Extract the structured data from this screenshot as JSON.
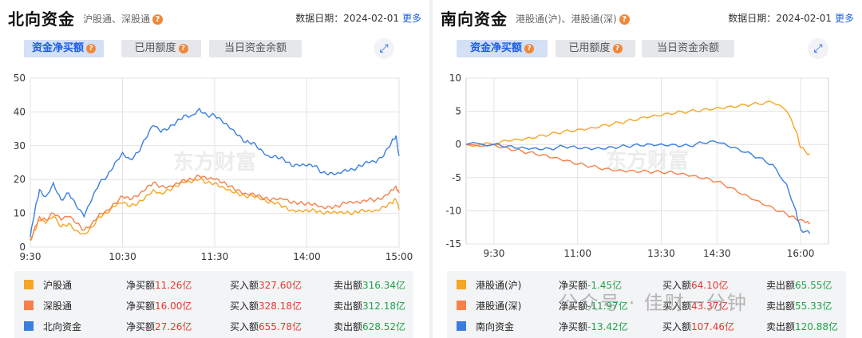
{
  "north": {
    "title": "北向资金",
    "subtitle": "沪股通、深股通",
    "date_label": "数据日期：2024-02-01",
    "more": "更多",
    "tabs": [
      {
        "label": "资金净买额",
        "active": true,
        "help": true
      },
      {
        "label": "已用额度",
        "active": false,
        "help": true
      },
      {
        "label": "当日资金余额",
        "active": false,
        "help": false
      }
    ],
    "legend": [
      {
        "name": "沪股通",
        "color": "#f5a623",
        "net_label": "净买额",
        "net": "11.26亿",
        "net_sign": "pos",
        "buy_label": "买入额",
        "buy": "327.60亿",
        "sell_label": "卖出额",
        "sell": "316.34亿"
      },
      {
        "name": "深股通",
        "color": "#f5804a",
        "net_label": "净买额",
        "net": "16.00亿",
        "net_sign": "pos",
        "buy_label": "买入额",
        "buy": "328.18亿",
        "sell_label": "卖出额",
        "sell": "312.18亿"
      },
      {
        "name": "北向资金",
        "color": "#3a7fe0",
        "net_label": "净买额",
        "net": "27.26亿",
        "net_sign": "pos",
        "buy_label": "买入额",
        "buy": "655.78亿",
        "sell_label": "卖出额",
        "sell": "628.52亿"
      }
    ]
  },
  "south": {
    "title": "南向资金",
    "subtitle": "港股通(沪)、港股通(深)",
    "date_label": "数据日期：2024-02-01",
    "more": "更多",
    "tabs": [
      {
        "label": "资金净买额",
        "active": true,
        "help": true
      },
      {
        "label": "已用额度",
        "active": false,
        "help": true
      },
      {
        "label": "当日资金余额",
        "active": false,
        "help": false
      }
    ],
    "legend": [
      {
        "name": "港股通(沪)",
        "color": "#f5a623",
        "net_label": "净买额",
        "net": "-1.45亿",
        "net_sign": "neg",
        "buy_label": "买入额",
        "buy": "64.10亿",
        "sell_label": "卖出额",
        "sell": "65.55亿"
      },
      {
        "name": "港股通(深)",
        "color": "#f5804a",
        "net_label": "净买额",
        "net": "-11.97亿",
        "net_sign": "neg",
        "buy_label": "买入额",
        "buy": "43.37亿",
        "sell_label": "卖出额",
        "sell": "55.33亿"
      },
      {
        "name": "南向资金",
        "color": "#3a7fe0",
        "net_label": "净买额",
        "net": "-13.42亿",
        "net_sign": "neg",
        "buy_label": "买入额",
        "buy": "107.46亿",
        "sell_label": "卖出额",
        "sell": "120.88亿"
      }
    ]
  },
  "watermark": "东方财富",
  "wechat_watermark": "公众号 · 佳财一分钟",
  "chart_data": [
    {
      "type": "line",
      "ylim": [
        0,
        50
      ],
      "yticks": [
        0,
        10,
        20,
        30,
        40,
        50
      ],
      "xticks": [
        "9:30",
        "10:30",
        "11:30",
        "14:00",
        "15:00"
      ],
      "x_units": "trading_minutes",
      "x_range": [
        0,
        240
      ],
      "xtick_positions": [
        0,
        60,
        120,
        180,
        240
      ],
      "grid": true,
      "series": [
        {
          "name": "沪股通",
          "color": "#f5a623",
          "points": [
            [
              0,
              2
            ],
            [
              3,
              5
            ],
            [
              6,
              8
            ],
            [
              10,
              7
            ],
            [
              15,
              9
            ],
            [
              20,
              6
            ],
            [
              25,
              7
            ],
            [
              30,
              5
            ],
            [
              35,
              4
            ],
            [
              40,
              6
            ],
            [
              45,
              9
            ],
            [
              50,
              10
            ],
            [
              55,
              12
            ],
            [
              60,
              13
            ],
            [
              65,
              12
            ],
            [
              70,
              13
            ],
            [
              75,
              15
            ],
            [
              80,
              17
            ],
            [
              85,
              16
            ],
            [
              90,
              17
            ],
            [
              95,
              18
            ],
            [
              100,
              19
            ],
            [
              105,
              19
            ],
            [
              110,
              20
            ],
            [
              115,
              19
            ],
            [
              120,
              19
            ],
            [
              125,
              18
            ],
            [
              130,
              17
            ],
            [
              135,
              16
            ],
            [
              140,
              15
            ],
            [
              145,
              15
            ],
            [
              150,
              14
            ],
            [
              155,
              13
            ],
            [
              160,
              13
            ],
            [
              165,
              12
            ],
            [
              170,
              11
            ],
            [
              175,
              11
            ],
            [
              180,
              11
            ],
            [
              185,
              11
            ],
            [
              190,
              10
            ],
            [
              195,
              10
            ],
            [
              200,
              10
            ],
            [
              205,
              10
            ],
            [
              210,
              10
            ],
            [
              215,
              11
            ],
            [
              220,
              11
            ],
            [
              225,
              11
            ],
            [
              230,
              12
            ],
            [
              235,
              13
            ],
            [
              238,
              14
            ],
            [
              240,
              11
            ]
          ]
        },
        {
          "name": "深股通",
          "color": "#f5804a",
          "points": [
            [
              0,
              2
            ],
            [
              3,
              6
            ],
            [
              6,
              9
            ],
            [
              10,
              8
            ],
            [
              15,
              10
            ],
            [
              20,
              8
            ],
            [
              25,
              9
            ],
            [
              30,
              7
            ],
            [
              35,
              5
            ],
            [
              40,
              7
            ],
            [
              45,
              10
            ],
            [
              50,
              11
            ],
            [
              55,
              13
            ],
            [
              60,
              15
            ],
            [
              65,
              14
            ],
            [
              70,
              15
            ],
            [
              75,
              17
            ],
            [
              80,
              19
            ],
            [
              85,
              18
            ],
            [
              90,
              18
            ],
            [
              95,
              19
            ],
            [
              100,
              20
            ],
            [
              105,
              20
            ],
            [
              110,
              21
            ],
            [
              115,
              20
            ],
            [
              120,
              20
            ],
            [
              125,
              19
            ],
            [
              130,
              18
            ],
            [
              135,
              17
            ],
            [
              140,
              16
            ],
            [
              145,
              16
            ],
            [
              150,
              15
            ],
            [
              155,
              14
            ],
            [
              160,
              14
            ],
            [
              165,
              14
            ],
            [
              170,
              13
            ],
            [
              175,
              13
            ],
            [
              180,
              13
            ],
            [
              185,
              13
            ],
            [
              190,
              12
            ],
            [
              195,
              12
            ],
            [
              200,
              12
            ],
            [
              205,
              13
            ],
            [
              210,
              13
            ],
            [
              215,
              13
            ],
            [
              220,
              14
            ],
            [
              225,
              14
            ],
            [
              230,
              15
            ],
            [
              235,
              17
            ],
            [
              238,
              18
            ],
            [
              240,
              16
            ]
          ]
        },
        {
          "name": "北向资金",
          "color": "#3a7fe0",
          "points": [
            [
              0,
              3
            ],
            [
              3,
              11
            ],
            [
              6,
              17
            ],
            [
              10,
              15
            ],
            [
              15,
              19
            ],
            [
              20,
              14
            ],
            [
              25,
              16
            ],
            [
              30,
              12
            ],
            [
              35,
              9
            ],
            [
              40,
              14
            ],
            [
              45,
              19
            ],
            [
              50,
              21
            ],
            [
              55,
              25
            ],
            [
              60,
              28
            ],
            [
              65,
              26
            ],
            [
              70,
              28
            ],
            [
              75,
              32
            ],
            [
              80,
              36
            ],
            [
              85,
              34
            ],
            [
              90,
              35
            ],
            [
              95,
              37
            ],
            [
              100,
              39
            ],
            [
              105,
              39
            ],
            [
              110,
              41
            ],
            [
              115,
              39
            ],
            [
              120,
              39
            ],
            [
              125,
              37
            ],
            [
              130,
              35
            ],
            [
              135,
              33
            ],
            [
              140,
              31
            ],
            [
              145,
              31
            ],
            [
              150,
              29
            ],
            [
              155,
              27
            ],
            [
              160,
              27
            ],
            [
              165,
              26
            ],
            [
              170,
              24
            ],
            [
              175,
              24
            ],
            [
              180,
              24
            ],
            [
              185,
              24
            ],
            [
              190,
              22
            ],
            [
              195,
              22
            ],
            [
              200,
              22
            ],
            [
              205,
              23
            ],
            [
              210,
              23
            ],
            [
              215,
              24
            ],
            [
              220,
              25
            ],
            [
              225,
              25
            ],
            [
              230,
              27
            ],
            [
              235,
              31
            ],
            [
              238,
              33
            ],
            [
              240,
              27
            ]
          ]
        }
      ]
    },
    {
      "type": "line",
      "ylim": [
        -15,
        10
      ],
      "yticks": [
        -15,
        -10,
        -5,
        0,
        5,
        10
      ],
      "xticks": [
        "9:30",
        "11:00",
        "13:30",
        "14:30",
        "16:00"
      ],
      "x_units": "trading_minutes",
      "x_range": [
        -15,
        375
      ],
      "xtick_positions": [
        15,
        105,
        195,
        255,
        345
      ],
      "grid": true,
      "series": [
        {
          "name": "港股通(沪)",
          "color": "#f5a623",
          "points": [
            [
              -15,
              0
            ],
            [
              15,
              0
            ],
            [
              30,
              0.5
            ],
            [
              45,
              0.6
            ],
            [
              60,
              1
            ],
            [
              75,
              1.5
            ],
            [
              90,
              2
            ],
            [
              105,
              2.3
            ],
            [
              120,
              2.6
            ],
            [
              135,
              3
            ],
            [
              150,
              3.3
            ],
            [
              165,
              3.6
            ],
            [
              180,
              4
            ],
            [
              195,
              4.3
            ],
            [
              210,
              4.7
            ],
            [
              225,
              5
            ],
            [
              240,
              5.3
            ],
            [
              255,
              5.6
            ],
            [
              270,
              5.8
            ],
            [
              285,
              6
            ],
            [
              300,
              6.1
            ],
            [
              315,
              6.3
            ],
            [
              330,
              5
            ],
            [
              340,
              2
            ],
            [
              345,
              -0.5
            ],
            [
              355,
              -1.45
            ]
          ]
        },
        {
          "name": "港股通(深)",
          "color": "#f5804a",
          "points": [
            [
              -15,
              0
            ],
            [
              15,
              0
            ],
            [
              30,
              -0.5
            ],
            [
              45,
              -1
            ],
            [
              60,
              -1.5
            ],
            [
              75,
              -2
            ],
            [
              90,
              -2.5
            ],
            [
              105,
              -3
            ],
            [
              120,
              -3.3
            ],
            [
              135,
              -3.6
            ],
            [
              150,
              -3.8
            ],
            [
              165,
              -3.9
            ],
            [
              180,
              -4
            ],
            [
              195,
              -4.2
            ],
            [
              210,
              -4.4
            ],
            [
              225,
              -4.8
            ],
            [
              240,
              -5.2
            ],
            [
              255,
              -5.6
            ],
            [
              270,
              -6.5
            ],
            [
              285,
              -7.5
            ],
            [
              300,
              -8.5
            ],
            [
              315,
              -9.5
            ],
            [
              330,
              -10.5
            ],
            [
              340,
              -11.3
            ],
            [
              350,
              -11.8
            ],
            [
              355,
              -11.97
            ]
          ]
        },
        {
          "name": "南向资金",
          "color": "#3a7fe0",
          "points": [
            [
              -15,
              0
            ],
            [
              15,
              0
            ],
            [
              30,
              -0.2
            ],
            [
              45,
              -0.4
            ],
            [
              60,
              -0.5
            ],
            [
              75,
              -0.6
            ],
            [
              90,
              -0.3
            ],
            [
              105,
              -0.6
            ],
            [
              120,
              -0.8
            ],
            [
              135,
              -0.7
            ],
            [
              150,
              -0.4
            ],
            [
              165,
              -0.1
            ],
            [
              180,
              0.1
            ],
            [
              195,
              0.1
            ],
            [
              210,
              0
            ],
            [
              225,
              -0.2
            ],
            [
              240,
              0.2
            ],
            [
              255,
              0.3
            ],
            [
              270,
              -0.5
            ],
            [
              285,
              -1.2
            ],
            [
              300,
              -2
            ],
            [
              315,
              -3
            ],
            [
              330,
              -6
            ],
            [
              340,
              -10
            ],
            [
              345,
              -12.8
            ],
            [
              355,
              -13.42
            ]
          ]
        }
      ]
    }
  ]
}
